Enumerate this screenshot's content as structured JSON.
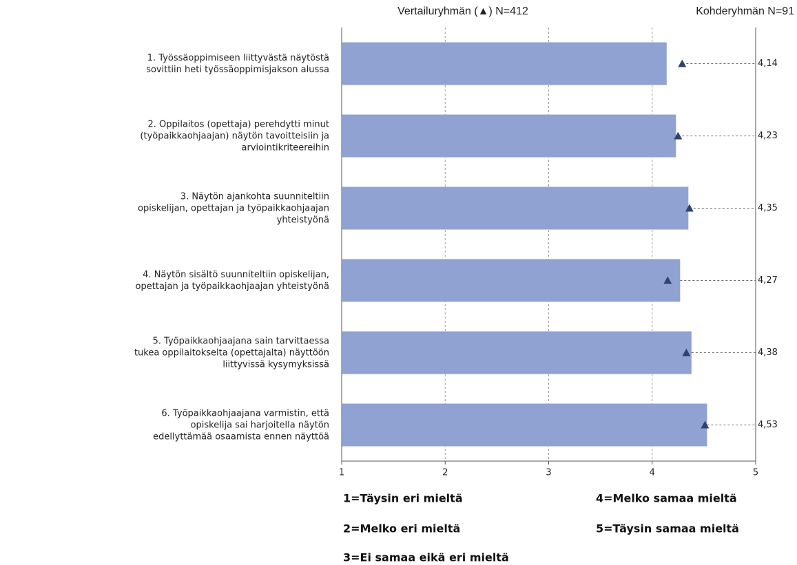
{
  "chart_data": {
    "type": "bar",
    "orientation": "horizontal",
    "categories": [
      [
        "1. Työssäoppimiseen liittyvästä näytöstä",
        "sovittiin heti työssäoppimisjakson alussa"
      ],
      [
        "2. Oppilaitos (opettaja) perehdytti minut",
        "(työpaikkaohjaajan) näytön tavoitteisiin ja",
        "arviointikriteereihin"
      ],
      [
        "3. Näytön ajankohta suunniteltiin",
        "opiskelijan, opettajan ja työpaikkaohjaajan",
        "yhteistyönä"
      ],
      [
        "4. Näytön sisältö suunniteltiin opiskelijan,",
        "opettajan ja työpaikkaohjaajan yhteistyönä"
      ],
      [
        "5. Työpaikkaohjaajana sain tarvittaessa",
        "tukea oppilaitokselta (opettajalta) näyttöön",
        "liittyvissä kysymyksissä"
      ],
      [
        "6. Työpaikkaohjaajana varmistin, että",
        "opiskelija sai harjoitella näytön",
        "edellyttämää osaamista ennen näyttöä"
      ]
    ],
    "series": [
      {
        "name": "Kohderyhmän N=91",
        "color": "#8fa2d1",
        "values": [
          4.14,
          4.23,
          4.35,
          4.27,
          4.38,
          4.53
        ],
        "value_labels": [
          "4,14",
          "4,23",
          "4,35",
          "4,27",
          "4,38",
          "4,53"
        ]
      },
      {
        "name": "Vertailuryhmän (▲) N=412",
        "color": "#2e4470",
        "marker": "triangle",
        "values": [
          4.29,
          4.25,
          4.36,
          4.15,
          4.33,
          4.51
        ]
      }
    ],
    "xlim": [
      1,
      5
    ],
    "xticks": [
      1,
      2,
      3,
      4,
      5
    ],
    "grid": true,
    "key": [
      "1=Täysin eri mieltä",
      "2=Melko eri mieltä",
      "3=Ei samaa eikä eri mieltä",
      "4=Melko samaa mieltä",
      "5=Täysin samaa mieltä"
    ]
  }
}
